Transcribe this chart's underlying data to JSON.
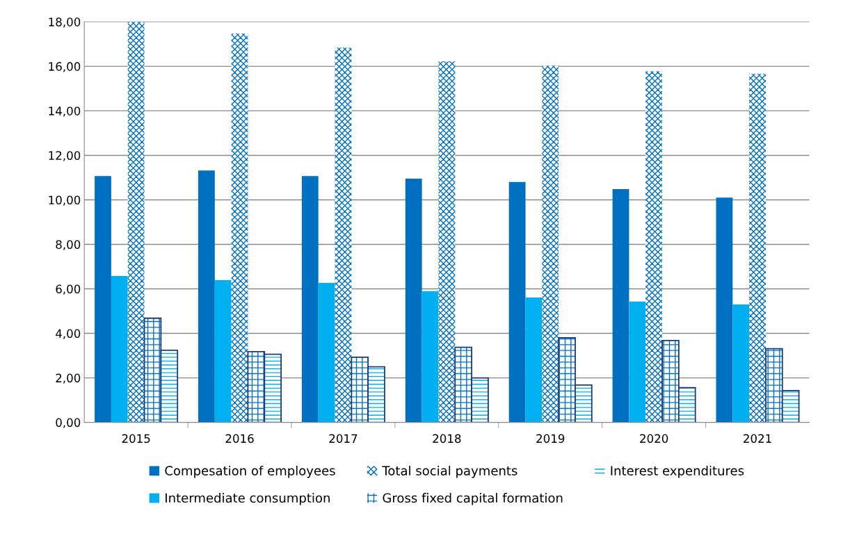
{
  "chart_data": {
    "type": "bar",
    "categories": [
      "2015",
      "2016",
      "2017",
      "2018",
      "2019",
      "2020",
      "2021"
    ],
    "series": [
      {
        "name": "Compesation of employees",
        "color": "#0070c0",
        "values": [
          11.07,
          11.32,
          11.07,
          10.95,
          10.8,
          10.48,
          10.1
        ]
      },
      {
        "name": "Intermediate consumption",
        "color": "#00b0f0",
        "values": [
          6.58,
          6.39,
          6.27,
          5.9,
          5.61,
          5.43,
          5.3
        ]
      },
      {
        "name": "Total social payments",
        "color": "#0070c0",
        "values": [
          18.0,
          17.47,
          16.84,
          16.22,
          16.03,
          15.78,
          15.66
        ]
      },
      {
        "name": "Gross fixed capital formation",
        "color": "#0070c0",
        "values": [
          4.68,
          3.18,
          2.93,
          3.37,
          3.8,
          3.68,
          3.31
        ]
      },
      {
        "name": "Interest expenditures",
        "color": "#00b0f0",
        "values": [
          3.24,
          3.06,
          2.5,
          2.0,
          1.68,
          1.56,
          1.43
        ]
      }
    ],
    "ylim": [
      0,
      18
    ],
    "yticks": [
      {
        "value": 0,
        "label": "0,00"
      },
      {
        "value": 2,
        "label": "2,00"
      },
      {
        "value": 4,
        "label": "4,00"
      },
      {
        "value": 6,
        "label": "6,00"
      },
      {
        "value": 8,
        "label": "8,00"
      },
      {
        "value": 10,
        "label": "10,00"
      },
      {
        "value": 12,
        "label": "12,00"
      },
      {
        "value": 14,
        "label": "14,00"
      },
      {
        "value": 16,
        "label": "16,00"
      },
      {
        "value": 18,
        "label": "18,00"
      }
    ],
    "grid": "y",
    "legend": "bottom"
  }
}
